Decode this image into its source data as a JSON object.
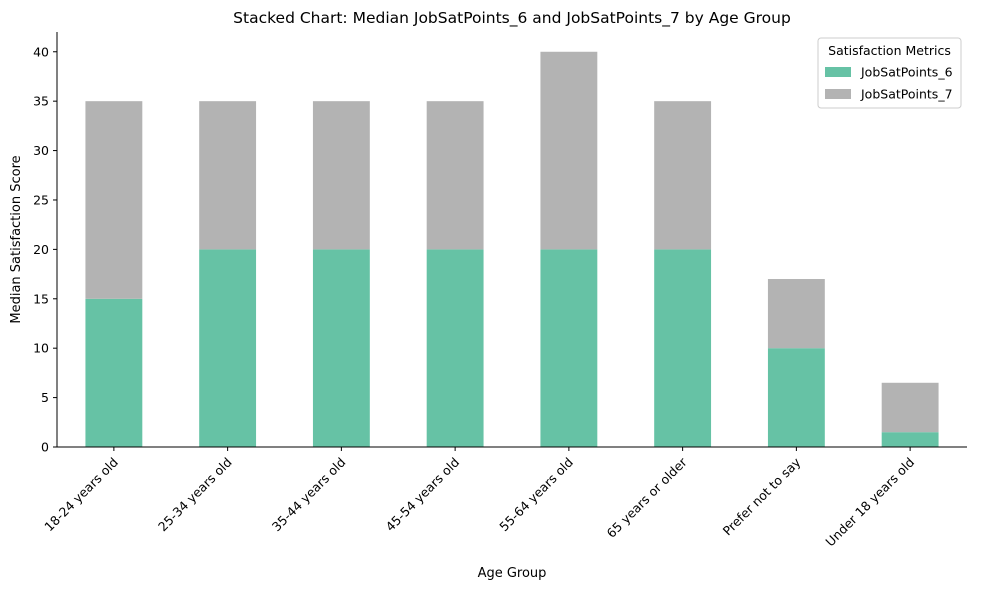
{
  "chart_data": {
    "type": "bar",
    "stacked": true,
    "title": "Stacked Chart: Median JobSatPoints_6 and JobSatPoints_7 by Age Group",
    "xlabel": "Age Group",
    "ylabel": "Median Satisfaction Score",
    "ylim": [
      0,
      42
    ],
    "yticks": [
      "0",
      "5",
      "10",
      "15",
      "20",
      "25",
      "30",
      "35",
      "40"
    ],
    "grid": false,
    "legend": {
      "title": "Satisfaction Metrics",
      "placement": "top-right"
    },
    "categories": [
      "18-24 years old",
      "25-34 years old",
      "35-44 years old",
      "45-54 years old",
      "55-64 years old",
      "65 years or older",
      "Prefer not to say",
      "Under 18 years old"
    ],
    "series": [
      {
        "name": "JobSatPoints_6",
        "color": "#66c2a5",
        "values": [
          15,
          20,
          20,
          20,
          20,
          20,
          10,
          1.5
        ]
      },
      {
        "name": "JobSatPoints_7",
        "color": "#b3b3b3",
        "values": [
          20,
          15,
          15,
          15,
          20,
          15,
          7,
          5
        ]
      }
    ]
  }
}
